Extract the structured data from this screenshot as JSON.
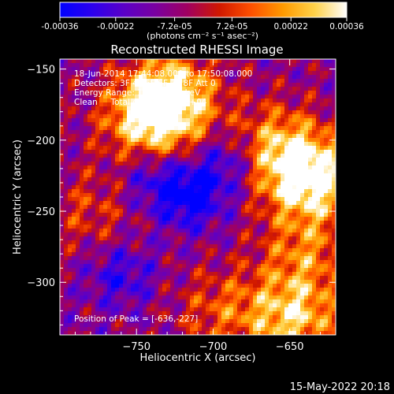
{
  "colorbar": {
    "ticks": [
      "-0.00036",
      "-0.00022",
      "-7.2e-05",
      "7.2e-05",
      "0.00022",
      "0.00036"
    ],
    "tick_values": [
      -0.00036,
      -0.00022,
      -7.2e-05,
      7.2e-05,
      0.00022,
      0.00036
    ],
    "range": [
      -0.00036,
      0.00036
    ],
    "units_label": "(photons cm⁻² s⁻¹ asec⁻²)",
    "colors": [
      "#0000ff",
      "#2b00ee",
      "#5a00c8",
      "#7a00a0",
      "#a00060",
      "#d01800",
      "#ff5000",
      "#ff9a00",
      "#ffd24a",
      "#ffffff"
    ]
  },
  "chart_data": {
    "type": "heatmap",
    "title": "Reconstructed RHESSI Image",
    "xlabel": "Heliocentric X (arcsec)",
    "ylabel": "Heliocentric Y (arcsec)",
    "xlim": [
      -800,
      -620
    ],
    "ylim": [
      -337,
      -143
    ],
    "xticks": [
      -750,
      -700,
      -650
    ],
    "yticks": [
      -150,
      -200,
      -250,
      -300
    ],
    "info_lines": [
      "18-Jun-2014 17:44:08.000 to 17:50:08.000",
      "Detectors: 3F 4F 5F 6F 7F 8F  Att 0",
      "Energy Range: 12.0 - 25.0 keV",
      "Clean     Total counts: 1.16E+04"
    ],
    "peak_label": "Position of Peak = [-636,-227]",
    "peak_position": [
      -636,
      -227
    ],
    "bright_regions": [
      {
        "x": -728,
        "y": -170,
        "level": 0.95
      },
      {
        "x": -742,
        "y": -188,
        "level": 0.8
      },
      {
        "x": -636,
        "y": -227,
        "level": 1.0
      },
      {
        "x": -660,
        "y": -205,
        "level": 0.75
      },
      {
        "x": -648,
        "y": -325,
        "level": 0.85
      },
      {
        "x": -695,
        "y": -320,
        "level": 0.6
      },
      {
        "x": -640,
        "y": -280,
        "level": 0.65
      },
      {
        "x": -780,
        "y": -250,
        "level": 0.55
      }
    ],
    "dark_regions": [
      {
        "x": -715,
        "y": -240,
        "level": 0.05
      },
      {
        "x": -690,
        "y": -215,
        "level": 0.15
      },
      {
        "x": -760,
        "y": -295,
        "level": 0.2
      },
      {
        "x": -740,
        "y": -225,
        "level": 0.2
      }
    ]
  },
  "timestamp": "15-May-2022 20:18"
}
